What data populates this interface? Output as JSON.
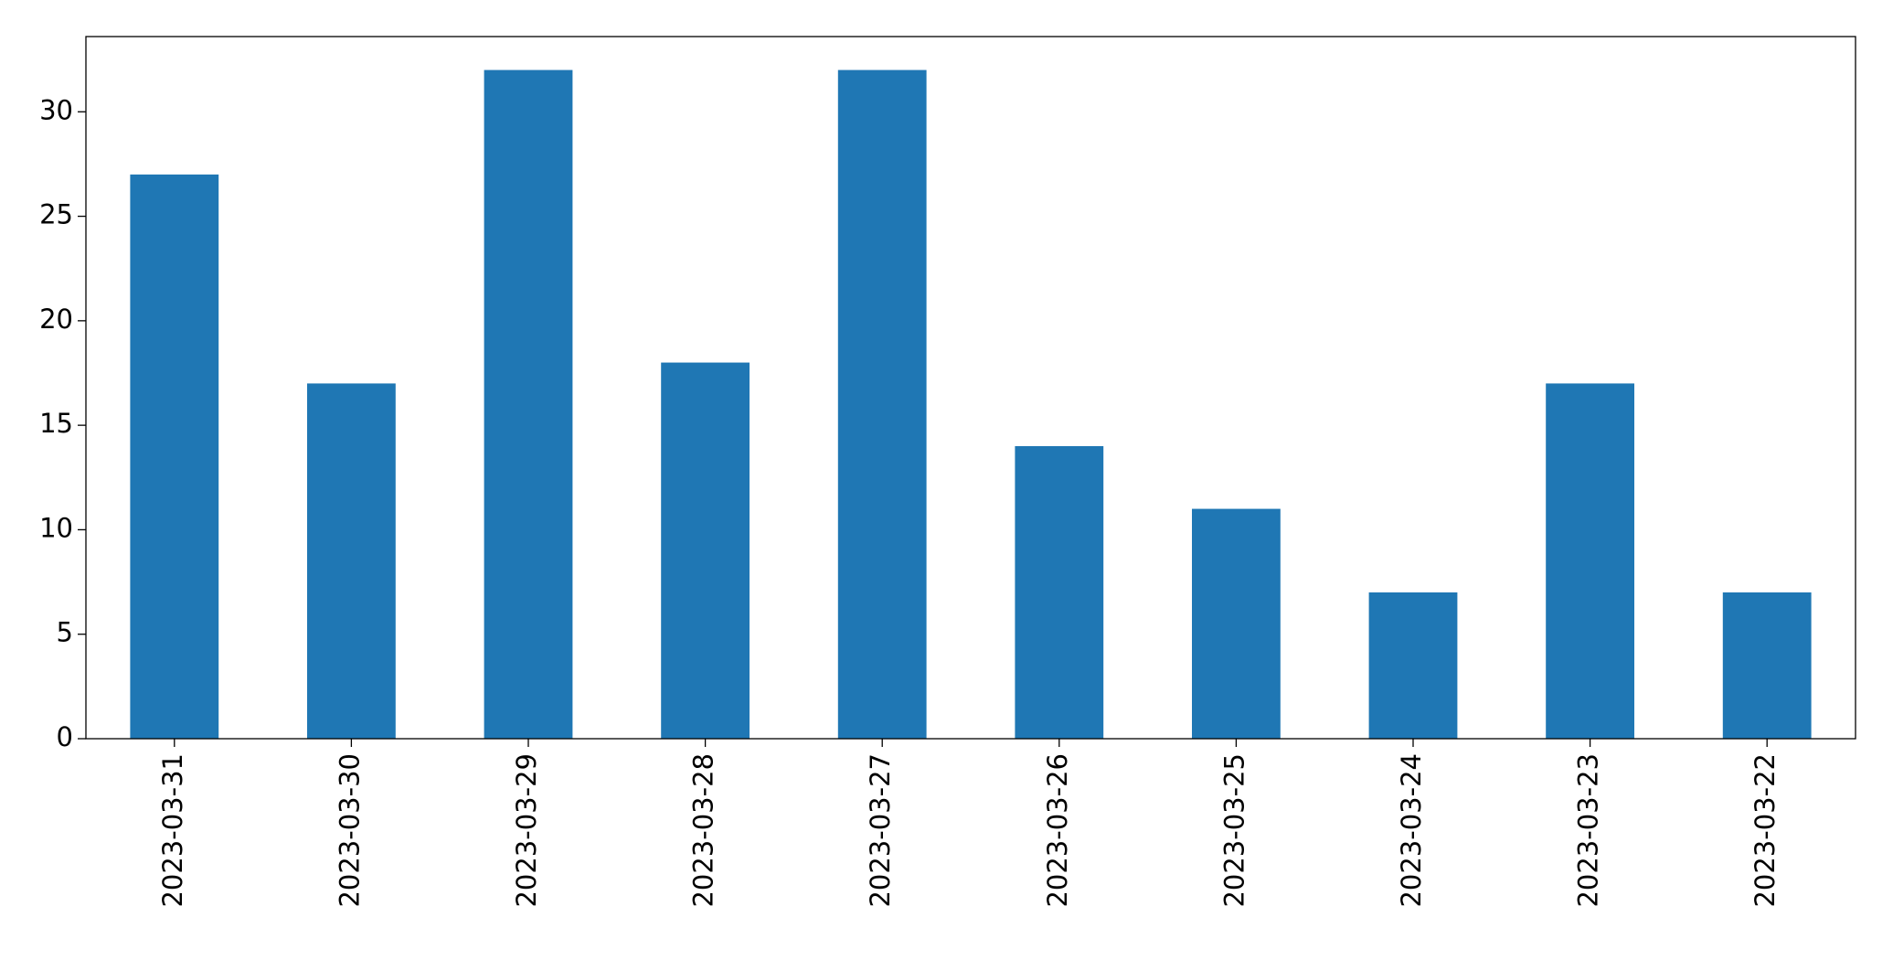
{
  "chart_data": {
    "type": "bar",
    "categories": [
      "2023-03-31",
      "2023-03-30",
      "2023-03-29",
      "2023-03-28",
      "2023-03-27",
      "2023-03-26",
      "2023-03-25",
      "2023-03-24",
      "2023-03-23",
      "2023-03-22"
    ],
    "values": [
      27,
      17,
      32,
      18,
      32,
      14,
      11,
      7,
      17,
      7
    ],
    "color": "#1f77b4",
    "ylim": [
      0,
      33.6
    ],
    "yticks": [
      0,
      5,
      10,
      15,
      20,
      25,
      30
    ],
    "grid": false
  }
}
